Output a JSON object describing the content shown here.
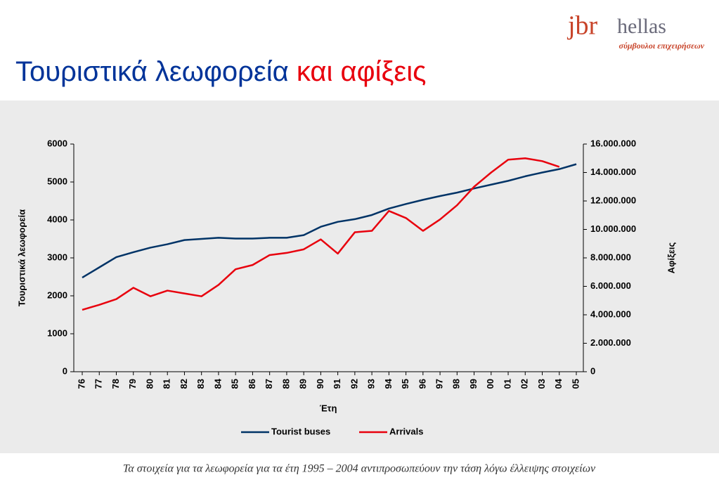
{
  "logo": {
    "mark": "jbr",
    "name": "hellas",
    "tagline": "σύμβουλοι επιχειρήσεων"
  },
  "title": {
    "part1": "Τουριστικά λεωφορεία",
    "part2": "και αφίξεις"
  },
  "footnote": "Τα στοιχεία για τα λεωφορεία για τα έτη 1995 – 2004 αντιπροσωπεύουν την τάση λόγω έλλειψης στοιχείων",
  "chart_data": {
    "type": "line",
    "x_label": "Έτη",
    "y_label": "Τουριστικά λεωφορεία",
    "y2_label": "Αφίξεις",
    "categories": [
      "76",
      "77",
      "78",
      "79",
      "80",
      "81",
      "82",
      "83",
      "84",
      "85",
      "86",
      "87",
      "88",
      "89",
      "90",
      "91",
      "92",
      "93",
      "94",
      "95",
      "96",
      "97",
      "98",
      "99",
      "00",
      "01",
      "02",
      "03",
      "04",
      "05"
    ],
    "series": [
      {
        "name": "Tourist buses",
        "color": "#003366",
        "values": [
          2480,
          2750,
          3020,
          3150,
          3270,
          3360,
          3470,
          3500,
          3530,
          3510,
          3510,
          3530,
          3530,
          3600,
          3820,
          3950,
          4020,
          4130,
          4300,
          4420,
          4530,
          4630,
          4720,
          4830,
          4930,
          5030,
          5150,
          5250,
          5340,
          5470
        ]
      },
      {
        "name": "Arrivals",
        "color": "#e8000d",
        "axis": "y2",
        "values": [
          4350000,
          4700000,
          5100000,
          5900000,
          5300000,
          5700000,
          5500000,
          5300000,
          6100000,
          7200000,
          7500000,
          8200000,
          8350000,
          8600000,
          9300000,
          8300000,
          9800000,
          9900000,
          11300000,
          10800000,
          9900000,
          10700000,
          11700000,
          13000000,
          14000000,
          14900000,
          15000000,
          14800000,
          14400000,
          null
        ]
      }
    ],
    "ylim": [
      0,
      6000
    ],
    "yticks": [
      0,
      1000,
      2000,
      3000,
      4000,
      5000,
      6000
    ],
    "y2lim": [
      0,
      16000000
    ],
    "y2ticks": [
      {
        "value": 0,
        "label": "0"
      },
      {
        "value": 2000000,
        "label": "2.000.000"
      },
      {
        "value": 4000000,
        "label": "4.000.000"
      },
      {
        "value": 6000000,
        "label": "6.000.000"
      },
      {
        "value": 8000000,
        "label": "8.000.000"
      },
      {
        "value": 10000000,
        "label": "10.000.000"
      },
      {
        "value": 12000000,
        "label": "12.000.000"
      },
      {
        "value": 14000000,
        "label": "14.000.000"
      },
      {
        "value": 16000000,
        "label": "16.000.000"
      }
    ],
    "legend": "bottom"
  }
}
